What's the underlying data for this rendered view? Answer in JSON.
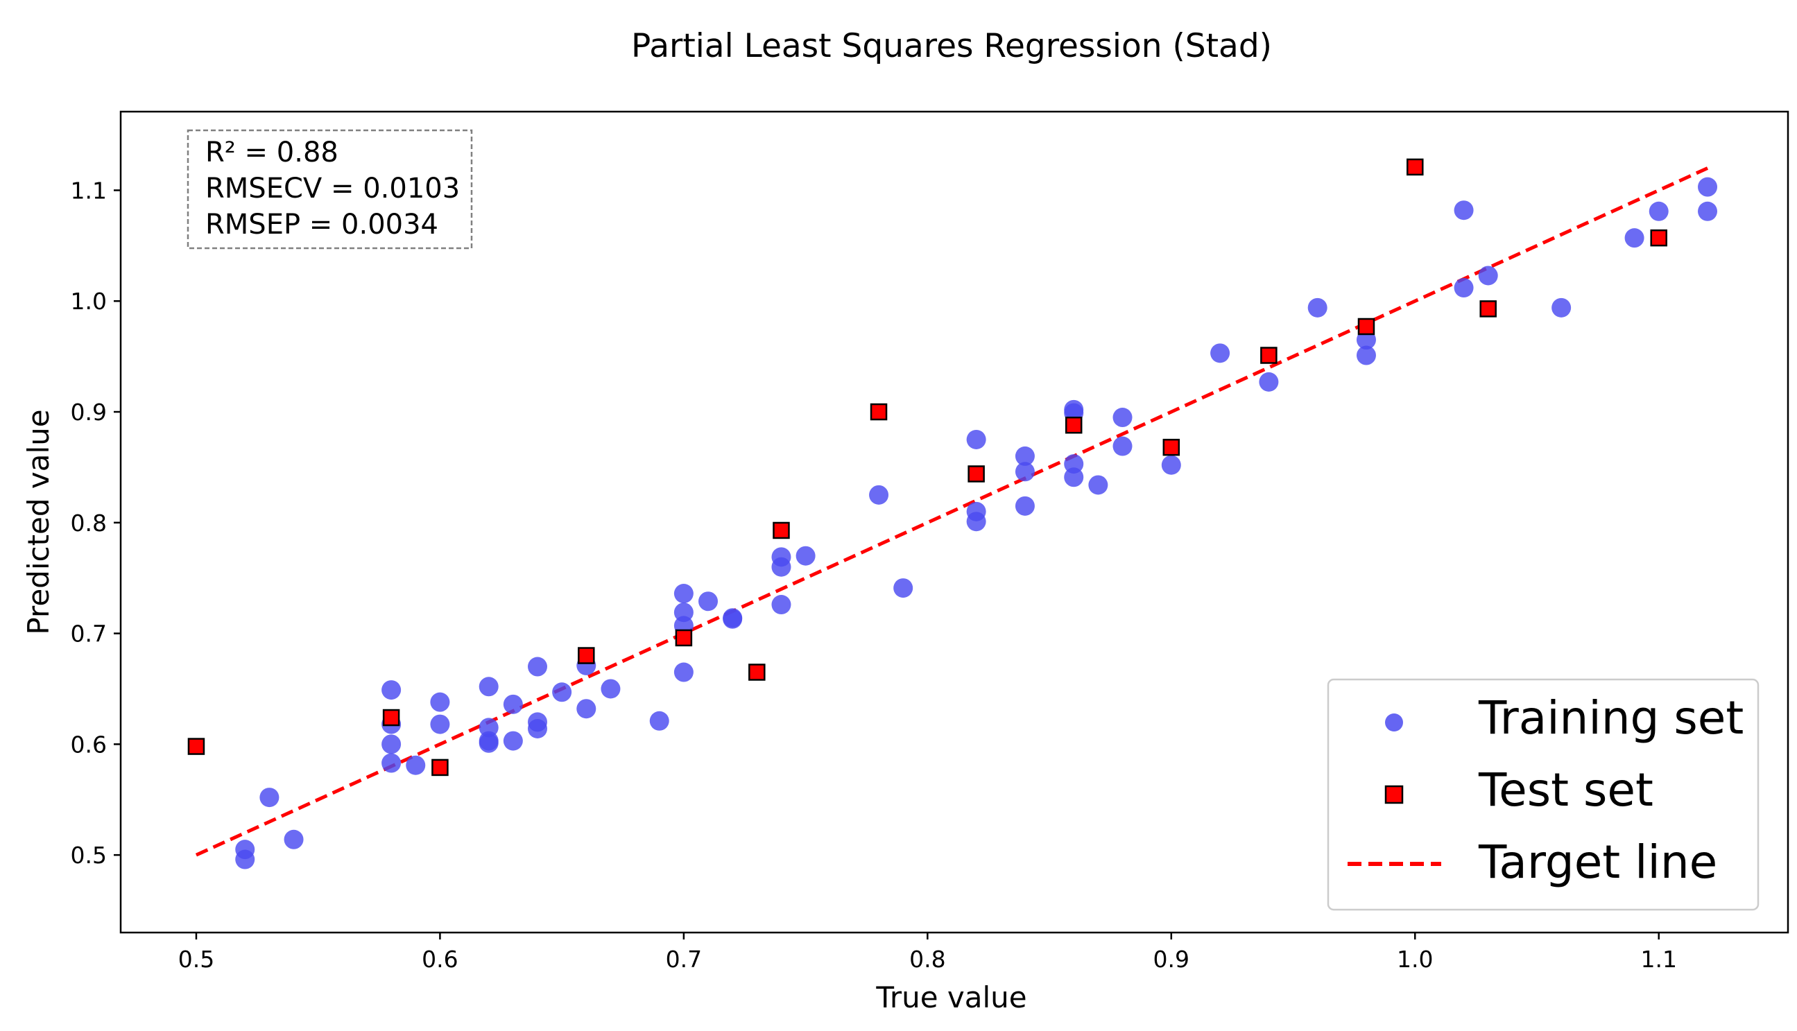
{
  "colors": {
    "training": "#4a4af0",
    "test_fill": "#ff0000",
    "test_edge": "#000000",
    "target": "#ff0000",
    "axis": "#000000",
    "stats_border": "#808080"
  },
  "chart_data": {
    "type": "scatter",
    "title": "Partial Least Squares Regression (Stad)",
    "xlabel": "True value",
    "ylabel": "Predicted value",
    "xlim": [
      0.469,
      1.153
    ],
    "ylim": [
      0.43,
      1.171
    ],
    "xticks": [
      0.5,
      0.6,
      0.7,
      0.8,
      0.9,
      1.0,
      1.1
    ],
    "yticks": [
      0.5,
      0.6,
      0.7,
      0.8,
      0.9,
      1.0,
      1.1
    ],
    "xtick_labels": [
      "0.5",
      "0.6",
      "0.7",
      "0.8",
      "0.9",
      "1.0",
      "1.1"
    ],
    "ytick_labels": [
      "0.5",
      "0.6",
      "0.7",
      "0.8",
      "0.9",
      "1.0",
      "1.1"
    ],
    "grid": false,
    "legend_position": "lower-right",
    "legend": {
      "training": "Training set",
      "test": "Test set",
      "target": "Target line"
    },
    "stats": {
      "r2": "R² = 0.88",
      "rmsecv": "RMSECV = 0.0103",
      "rmsep": "RMSEP = 0.0034"
    },
    "series": [
      {
        "name": "Training set",
        "marker": "circle",
        "points": [
          [
            0.52,
            0.505
          ],
          [
            0.52,
            0.496
          ],
          [
            0.53,
            0.552
          ],
          [
            0.54,
            0.514
          ],
          [
            0.58,
            0.649
          ],
          [
            0.58,
            0.618
          ],
          [
            0.58,
            0.6
          ],
          [
            0.58,
            0.583
          ],
          [
            0.59,
            0.581
          ],
          [
            0.6,
            0.638
          ],
          [
            0.6,
            0.618
          ],
          [
            0.62,
            0.652
          ],
          [
            0.62,
            0.615
          ],
          [
            0.62,
            0.603
          ],
          [
            0.62,
            0.601
          ],
          [
            0.63,
            0.636
          ],
          [
            0.63,
            0.603
          ],
          [
            0.64,
            0.67
          ],
          [
            0.64,
            0.62
          ],
          [
            0.64,
            0.614
          ],
          [
            0.65,
            0.647
          ],
          [
            0.66,
            0.671
          ],
          [
            0.66,
            0.632
          ],
          [
            0.67,
            0.65
          ],
          [
            0.69,
            0.621
          ],
          [
            0.7,
            0.736
          ],
          [
            0.7,
            0.719
          ],
          [
            0.7,
            0.707
          ],
          [
            0.7,
            0.665
          ],
          [
            0.71,
            0.729
          ],
          [
            0.72,
            0.714
          ],
          [
            0.72,
            0.713
          ],
          [
            0.74,
            0.769
          ],
          [
            0.74,
            0.76
          ],
          [
            0.74,
            0.726
          ],
          [
            0.75,
            0.77
          ],
          [
            0.78,
            0.825
          ],
          [
            0.79,
            0.741
          ],
          [
            0.82,
            0.875
          ],
          [
            0.82,
            0.81
          ],
          [
            0.82,
            0.801
          ],
          [
            0.84,
            0.86
          ],
          [
            0.84,
            0.846
          ],
          [
            0.84,
            0.815
          ],
          [
            0.86,
            0.902
          ],
          [
            0.86,
            0.899
          ],
          [
            0.86,
            0.853
          ],
          [
            0.86,
            0.841
          ],
          [
            0.87,
            0.834
          ],
          [
            0.88,
            0.895
          ],
          [
            0.88,
            0.869
          ],
          [
            0.9,
            0.852
          ],
          [
            0.92,
            0.953
          ],
          [
            0.94,
            0.927
          ],
          [
            0.96,
            0.994
          ],
          [
            0.98,
            0.965
          ],
          [
            0.98,
            0.951
          ],
          [
            1.02,
            1.082
          ],
          [
            1.02,
            1.012
          ],
          [
            1.03,
            1.023
          ],
          [
            1.06,
            0.994
          ],
          [
            1.09,
            1.057
          ],
          [
            1.1,
            1.081
          ],
          [
            1.12,
            1.103
          ],
          [
            1.12,
            1.081
          ]
        ]
      },
      {
        "name": "Test set",
        "marker": "square",
        "points": [
          [
            0.5,
            0.598
          ],
          [
            0.58,
            0.624
          ],
          [
            0.6,
            0.579
          ],
          [
            0.66,
            0.68
          ],
          [
            0.7,
            0.696
          ],
          [
            0.73,
            0.665
          ],
          [
            0.74,
            0.793
          ],
          [
            0.78,
            0.9
          ],
          [
            0.82,
            0.844
          ],
          [
            0.86,
            0.888
          ],
          [
            0.9,
            0.868
          ],
          [
            0.94,
            0.951
          ],
          [
            0.98,
            0.977
          ],
          [
            1.0,
            1.121
          ],
          [
            1.03,
            0.993
          ],
          [
            1.1,
            1.057
          ]
        ]
      },
      {
        "name": "Target line",
        "style": "dashed",
        "points": [
          [
            0.5,
            0.5
          ],
          [
            1.12,
            1.12
          ]
        ]
      }
    ]
  }
}
